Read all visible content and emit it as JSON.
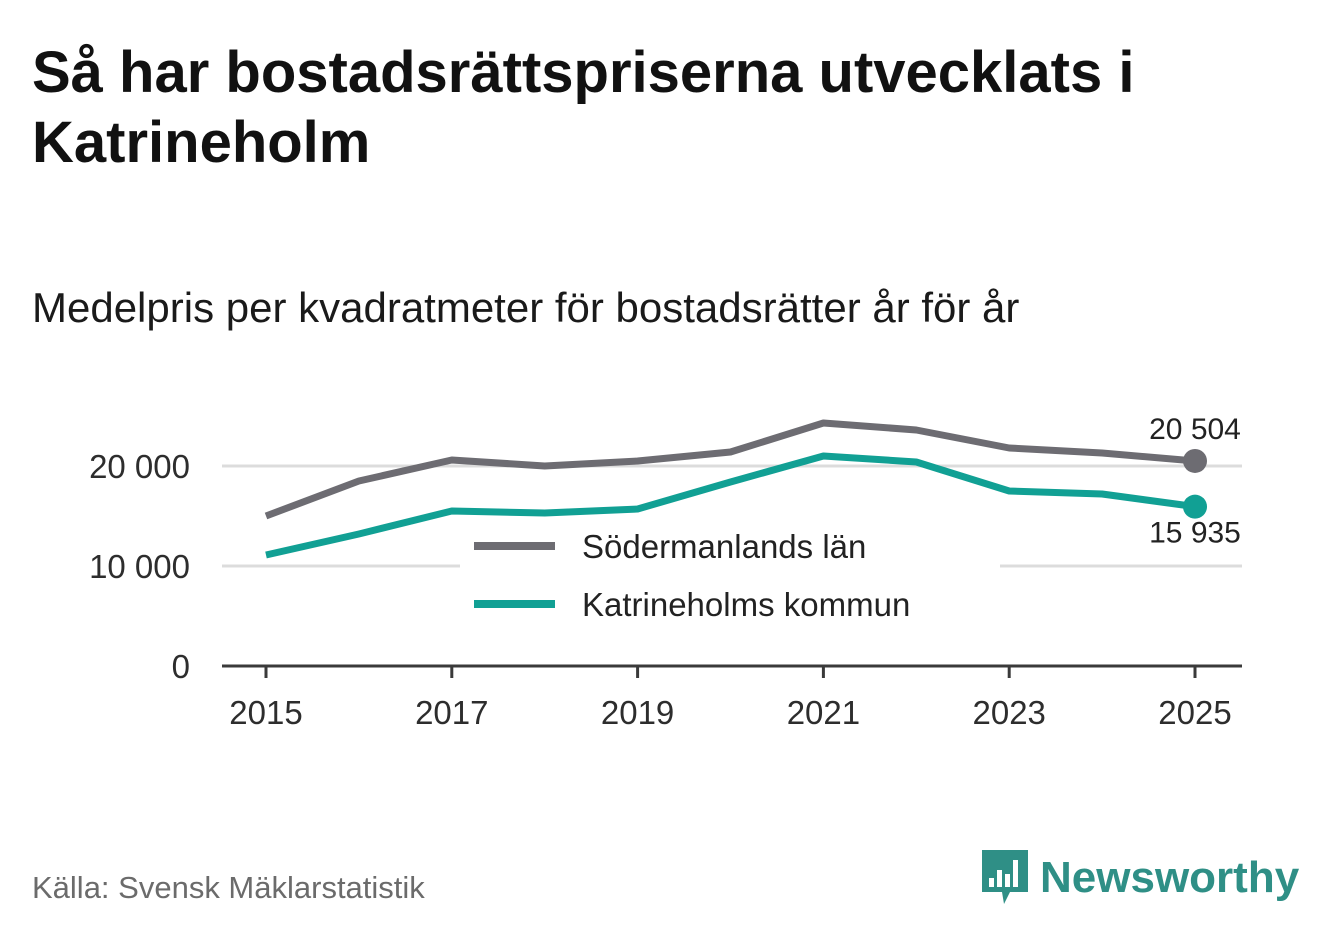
{
  "title": "Så har bostadsrättspriserna utvecklats i Katrineholm",
  "subtitle": "Medelpris per kvadratmeter för bostadsrätter år för år",
  "source": "Källa: Svensk Mäklarstatistik",
  "brand": {
    "name": "Newsworthy",
    "icon": "newsworthy-chart-icon"
  },
  "chart_data": {
    "type": "line",
    "x": [
      2015,
      2016,
      2017,
      2018,
      2019,
      2020,
      2021,
      2022,
      2023,
      2024,
      2025
    ],
    "xticks": [
      "2015",
      "2017",
      "2019",
      "2021",
      "2023",
      "2025"
    ],
    "yticks": [
      "0",
      "10 000",
      "20 000"
    ],
    "ylim": [
      0,
      25000
    ],
    "series": [
      {
        "name": "Södermanlands län",
        "color": "#6d6c72",
        "values": [
          15000,
          18500,
          20600,
          20000,
          20500,
          21400,
          24300,
          23600,
          21800,
          21300,
          20504
        ],
        "end_label": "20 504"
      },
      {
        "name": "Katrineholms kommun",
        "color": "#11a094",
        "values": [
          11100,
          13200,
          15500,
          15300,
          15700,
          18400,
          21000,
          20400,
          17500,
          17200,
          15935
        ],
        "end_label": "15 935"
      }
    ],
    "xlabel": "",
    "ylabel": "",
    "legend": "center"
  }
}
